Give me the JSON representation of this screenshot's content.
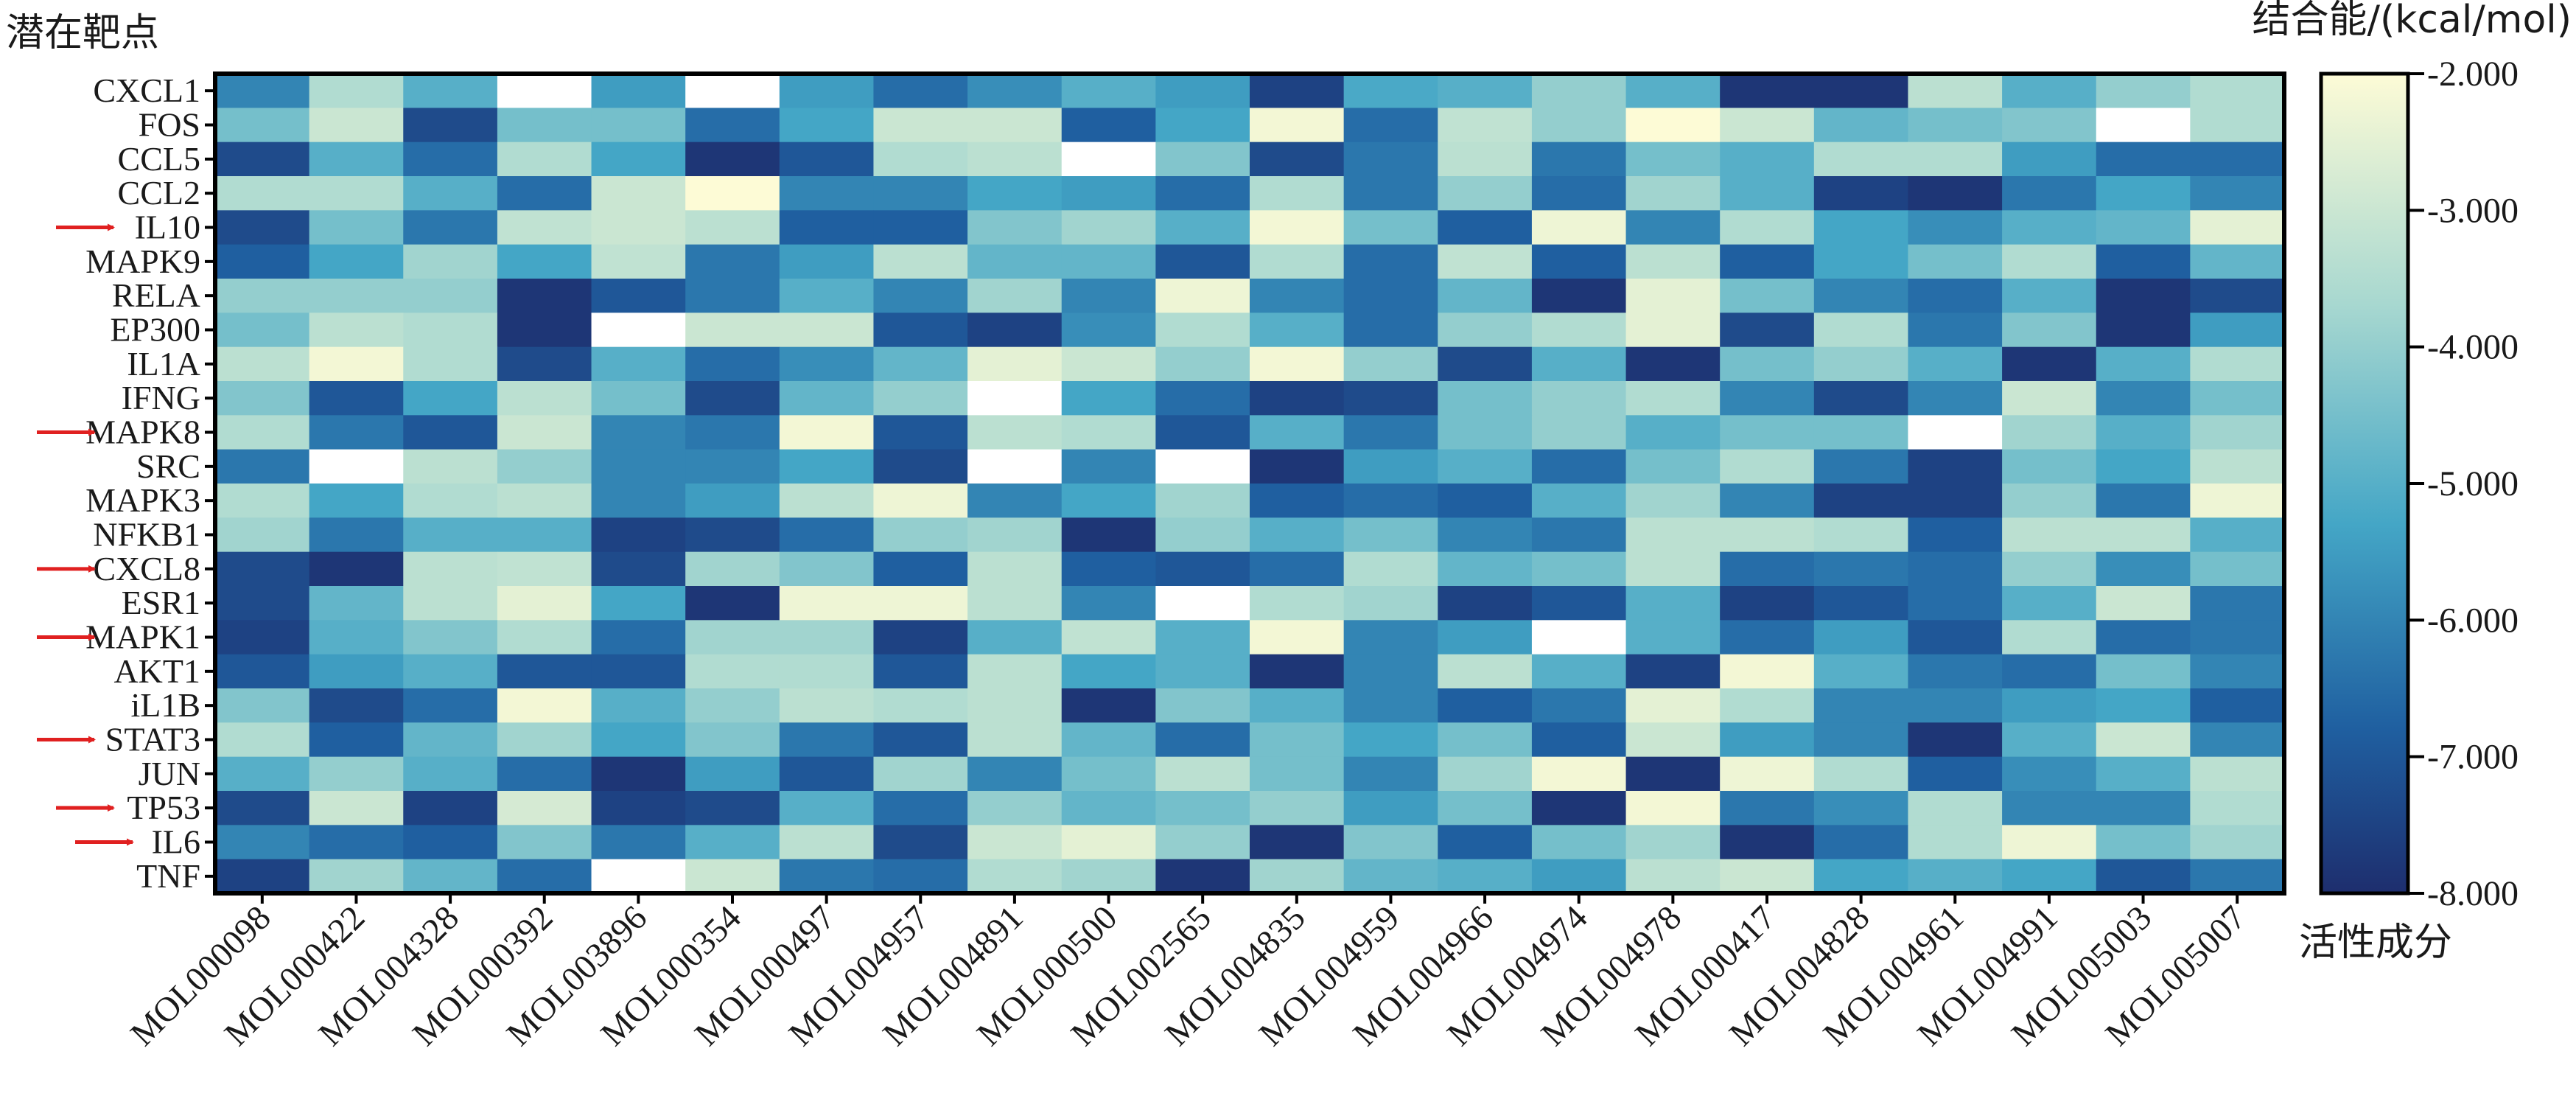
{
  "chart_data": {
    "type": "heatmap",
    "title": "",
    "ylabel": "潜在靶点",
    "xlabel": "活性成分",
    "colorbar_label": "结合能/(kcal/mol)",
    "colorbar_ticks": [
      "-2.000",
      "-3.000",
      "-4.000",
      "-5.000",
      "-6.000",
      "-7.000",
      "-8.000"
    ],
    "value_range": [
      -8.0,
      -2.0
    ],
    "colors": {
      "low": "#1e2e6e",
      "mid_low": "#1f5fa0",
      "mid": "#44a6c6",
      "mid_high": "#a8d8d0",
      "high": "#fdfbd6",
      "grid": "#000000",
      "arrow": "#e02020"
    },
    "rows": [
      "CXCL1",
      "FOS",
      "CCL5",
      "CCL2",
      "IL10",
      "MAPK9",
      "RELA",
      "EP300",
      "IL1A",
      "IFNG",
      "MAPK8",
      "SRC",
      "MAPK3",
      "NFKB1",
      "CXCL8",
      "ESR1",
      "MAPK1",
      "AKT1",
      "iL1B",
      "STAT3",
      "JUN",
      "TP53",
      "IL6",
      "TNF"
    ],
    "highlighted_rows": [
      "IL10",
      "MAPK8",
      "CXCL8",
      "MAPK1",
      "STAT3",
      "TP53",
      "IL6"
    ],
    "columns": [
      "MOL000098",
      "MOL000422",
      "MOL004328",
      "MOL000392",
      "MOL003896",
      "MOL000354",
      "MOL000497",
      "MOL004957",
      "MOL004891",
      "MOL000500",
      "MOL002565",
      "MOL004835",
      "MOL004959",
      "MOL004966",
      "MOL004974",
      "MOL004978",
      "MOL000417",
      "MOL004828",
      "MOL004961",
      "MOL004991",
      "MOL005003",
      "MOL005007"
    ],
    "values": [
      [
        -6.0,
        -3.5,
        -5.0,
        -1.0,
        -5.5,
        -1.0,
        -5.5,
        -6.5,
        -5.8,
        -5.0,
        -5.5,
        -7.5,
        -5.2,
        -5.0,
        -4.0,
        -5.0,
        -7.8,
        -7.8,
        -3.3,
        -5.0,
        -4.0,
        -3.5
      ],
      [
        -4.5,
        -3.0,
        -7.3,
        -4.5,
        -4.5,
        -6.5,
        -5.3,
        -3.0,
        -3.0,
        -6.8,
        -5.3,
        -2.2,
        -6.5,
        -3.2,
        -4.0,
        -2.0,
        -3.0,
        -4.8,
        -4.5,
        -4.3,
        -1.0,
        -3.5
      ],
      [
        -7.3,
        -5.0,
        -6.5,
        -3.5,
        -5.3,
        -7.8,
        -7.0,
        -3.5,
        -3.3,
        -1.0,
        -4.3,
        -7.3,
        -6.3,
        -3.3,
        -6.3,
        -4.5,
        -5.0,
        -3.5,
        -3.5,
        -5.5,
        -6.5,
        -6.5
      ],
      [
        -3.5,
        -3.5,
        -5.0,
        -6.5,
        -3.0,
        -2.0,
        -6.0,
        -6.0,
        -5.3,
        -5.5,
        -6.5,
        -3.5,
        -6.3,
        -4.0,
        -6.5,
        -3.8,
        -5.0,
        -7.5,
        -7.8,
        -6.3,
        -5.3,
        -6.0
      ],
      [
        -7.3,
        -4.5,
        -6.3,
        -3.2,
        -3.0,
        -3.3,
        -6.8,
        -6.8,
        -4.3,
        -3.8,
        -5.0,
        -2.2,
        -4.5,
        -6.8,
        -2.3,
        -6.0,
        -3.5,
        -5.3,
        -5.8,
        -5.0,
        -4.8,
        -2.5
      ],
      [
        -6.8,
        -5.3,
        -3.8,
        -5.3,
        -3.2,
        -6.3,
        -5.5,
        -3.3,
        -4.8,
        -4.8,
        -7.0,
        -3.5,
        -6.5,
        -3.2,
        -6.8,
        -3.3,
        -6.8,
        -5.3,
        -4.5,
        -3.5,
        -6.8,
        -4.8
      ],
      [
        -4.0,
        -4.0,
        -4.0,
        -7.8,
        -7.0,
        -6.3,
        -5.0,
        -6.0,
        -3.8,
        -6.0,
        -2.3,
        -6.0,
        -6.5,
        -4.8,
        -7.8,
        -2.5,
        -4.5,
        -6.0,
        -6.5,
        -5.0,
        -7.8,
        -7.3
      ],
      [
        -4.5,
        -3.3,
        -3.5,
        -7.8,
        -1.0,
        -3.0,
        -3.0,
        -7.0,
        -7.5,
        -5.8,
        -3.5,
        -5.0,
        -6.5,
        -4.0,
        -3.5,
        -2.5,
        -7.3,
        -3.5,
        -6.3,
        -4.3,
        -7.8,
        -5.5
      ],
      [
        -3.3,
        -2.2,
        -3.5,
        -7.3,
        -5.0,
        -6.5,
        -5.8,
        -4.8,
        -2.5,
        -3.0,
        -4.0,
        -2.2,
        -4.0,
        -7.3,
        -5.0,
        -7.8,
        -4.5,
        -4.0,
        -5.0,
        -7.8,
        -5.0,
        -3.5
      ],
      [
        -4.3,
        -7.0,
        -5.3,
        -3.3,
        -4.5,
        -7.3,
        -4.8,
        -4.0,
        -1.0,
        -5.3,
        -6.5,
        -7.5,
        -7.3,
        -4.5,
        -4.0,
        -3.5,
        -6.0,
        -7.3,
        -6.0,
        -3.0,
        -6.0,
        -4.5
      ],
      [
        -3.5,
        -6.3,
        -7.0,
        -3.0,
        -6.0,
        -6.3,
        -2.2,
        -7.0,
        -3.3,
        -3.5,
        -7.0,
        -5.0,
        -6.3,
        -4.5,
        -4.0,
        -5.0,
        -4.5,
        -4.5,
        -1.0,
        -3.8,
        -5.0,
        -3.8
      ],
      [
        -6.3,
        -1.0,
        -3.3,
        -4.0,
        -6.0,
        -6.0,
        -5.3,
        -7.3,
        -1.0,
        -6.0,
        -1.0,
        -7.8,
        -5.5,
        -5.0,
        -6.5,
        -4.5,
        -3.5,
        -6.3,
        -7.5,
        -4.5,
        -5.3,
        -3.3
      ],
      [
        -3.5,
        -5.3,
        -3.5,
        -3.3,
        -6.0,
        -5.5,
        -3.3,
        -2.3,
        -6.0,
        -5.3,
        -3.8,
        -6.8,
        -6.5,
        -6.8,
        -5.0,
        -3.8,
        -6.0,
        -7.5,
        -7.5,
        -4.0,
        -6.3,
        -2.3
      ],
      [
        -3.8,
        -6.3,
        -5.0,
        -5.0,
        -7.5,
        -7.3,
        -6.5,
        -4.0,
        -3.8,
        -7.8,
        -4.0,
        -5.0,
        -4.5,
        -6.0,
        -6.3,
        -3.3,
        -3.3,
        -3.5,
        -6.8,
        -3.3,
        -3.3,
        -5.0
      ],
      [
        -7.3,
        -7.8,
        -3.3,
        -3.2,
        -7.3,
        -3.8,
        -4.3,
        -6.8,
        -3.3,
        -6.8,
        -7.0,
        -6.5,
        -3.5,
        -4.8,
        -4.5,
        -3.3,
        -6.5,
        -6.3,
        -6.5,
        -4.0,
        -5.8,
        -4.5
      ],
      [
        -7.3,
        -4.8,
        -3.3,
        -2.5,
        -5.3,
        -7.8,
        -2.3,
        -2.3,
        -3.3,
        -6.0,
        -1.0,
        -3.5,
        -3.8,
        -7.5,
        -7.0,
        -5.0,
        -7.5,
        -7.0,
        -6.5,
        -5.0,
        -3.0,
        -6.3
      ],
      [
        -7.5,
        -5.0,
        -4.3,
        -3.5,
        -6.5,
        -3.8,
        -3.8,
        -7.5,
        -5.0,
        -3.2,
        -5.0,
        -2.2,
        -6.0,
        -5.5,
        -1.0,
        -5.0,
        -6.5,
        -5.5,
        -7.0,
        -3.5,
        -6.5,
        -6.3
      ],
      [
        -7.0,
        -5.5,
        -5.0,
        -7.0,
        -7.0,
        -3.5,
        -3.5,
        -7.0,
        -3.3,
        -5.3,
        -5.0,
        -7.8,
        -6.0,
        -3.3,
        -5.0,
        -7.5,
        -2.2,
        -5.0,
        -6.3,
        -6.5,
        -4.5,
        -6.0
      ],
      [
        -4.3,
        -7.3,
        -6.5,
        -2.2,
        -5.0,
        -4.0,
        -3.3,
        -3.5,
        -3.3,
        -7.8,
        -4.3,
        -5.0,
        -6.0,
        -6.8,
        -6.3,
        -2.5,
        -3.5,
        -6.0,
        -6.0,
        -5.5,
        -5.3,
        -6.8
      ],
      [
        -3.5,
        -6.8,
        -4.8,
        -3.8,
        -5.3,
        -4.3,
        -6.3,
        -7.0,
        -3.3,
        -4.8,
        -6.5,
        -4.5,
        -5.3,
        -4.5,
        -6.8,
        -3.0,
        -5.5,
        -6.0,
        -7.8,
        -5.0,
        -3.0,
        -6.0
      ],
      [
        -5.0,
        -4.0,
        -5.0,
        -6.5,
        -7.8,
        -5.5,
        -7.0,
        -3.8,
        -6.0,
        -4.5,
        -3.3,
        -4.5,
        -6.0,
        -3.8,
        -2.2,
        -7.8,
        -2.3,
        -3.5,
        -6.8,
        -5.8,
        -5.0,
        -3.3
      ],
      [
        -7.3,
        -3.0,
        -7.5,
        -2.8,
        -7.5,
        -7.3,
        -5.0,
        -6.5,
        -4.0,
        -4.8,
        -4.5,
        -4.0,
        -5.5,
        -4.5,
        -7.8,
        -2.2,
        -6.3,
        -5.8,
        -3.5,
        -6.0,
        -6.0,
        -3.5
      ],
      [
        -6.0,
        -6.5,
        -6.8,
        -4.3,
        -6.3,
        -5.0,
        -3.3,
        -7.3,
        -3.0,
        -2.5,
        -4.0,
        -7.8,
        -4.3,
        -6.8,
        -4.5,
        -3.8,
        -7.8,
        -6.5,
        -3.5,
        -2.3,
        -4.5,
        -3.8
      ],
      [
        -7.5,
        -3.8,
        -4.8,
        -6.5,
        -1.0,
        -3.0,
        -6.3,
        -6.5,
        -3.5,
        -3.8,
        -7.8,
        -3.8,
        -4.8,
        -5.0,
        -5.5,
        -3.3,
        -3.0,
        -5.3,
        -5.0,
        -5.3,
        -7.0,
        -6.3
      ]
    ]
  }
}
